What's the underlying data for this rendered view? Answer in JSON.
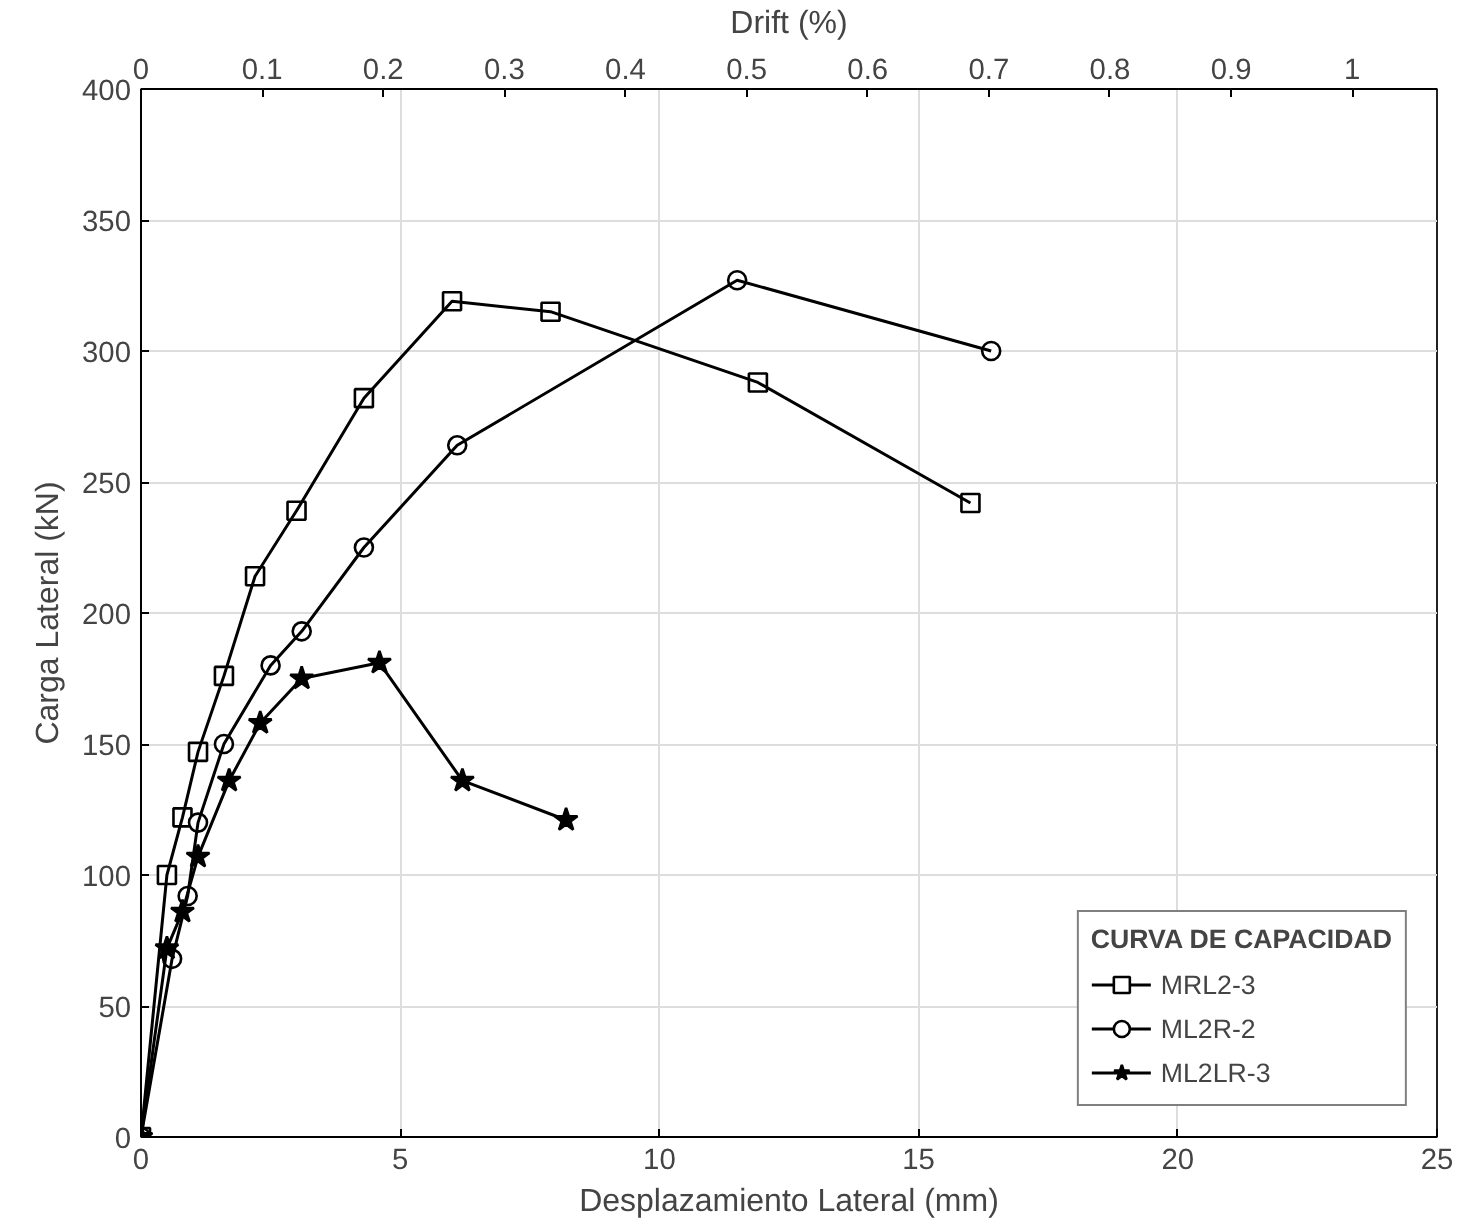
{
  "chart_data": {
    "type": "line",
    "xlabel": "Desplazamiento Lateral (mm)",
    "ylabel": "Carga Lateral (kN)",
    "x2label": "Drift (%)",
    "legend_title": "CURVA DE CAPACIDAD",
    "xlim": [
      0,
      25
    ],
    "xticks": [
      0,
      5,
      10,
      15,
      20,
      25
    ],
    "ylim": [
      0,
      400
    ],
    "yticks": [
      0,
      50,
      100,
      150,
      200,
      250,
      300,
      350,
      400
    ],
    "x2lim": [
      0,
      1.07
    ],
    "x2ticks": [
      0,
      0.1,
      0.2,
      0.3,
      0.4,
      0.5,
      0.6,
      0.7,
      0.8,
      0.9,
      1
    ],
    "grid": true,
    "legend": "bottom right",
    "line_style": "solid",
    "series": [
      {
        "name": "MRL2-3",
        "color": "#000000",
        "marker": "square",
        "x": [
          0,
          0.5,
          0.8,
          1.1,
          1.6,
          2.2,
          3.0,
          4.3,
          6.0,
          7.9,
          11.9,
          16.0
        ],
        "values": [
          0,
          100,
          122,
          147,
          176,
          214,
          239,
          282,
          319,
          315,
          288,
          242
        ]
      },
      {
        "name": "ML2R-2",
        "color": "#000000",
        "marker": "circle",
        "x": [
          0,
          0.6,
          0.9,
          1.1,
          1.6,
          2.5,
          3.1,
          4.3,
          6.1,
          11.5,
          16.4
        ],
        "values": [
          0,
          68,
          92,
          120,
          150,
          180,
          193,
          225,
          264,
          327,
          300
        ]
      },
      {
        "name": "ML2LR-3",
        "color": "#000000",
        "marker": "star",
        "x": [
          0,
          0.5,
          0.8,
          1.1,
          1.7,
          2.3,
          3.1,
          4.6,
          6.2,
          8.2
        ],
        "values": [
          0,
          72,
          86,
          107,
          136,
          158,
          175,
          181,
          136,
          121
        ]
      }
    ]
  }
}
